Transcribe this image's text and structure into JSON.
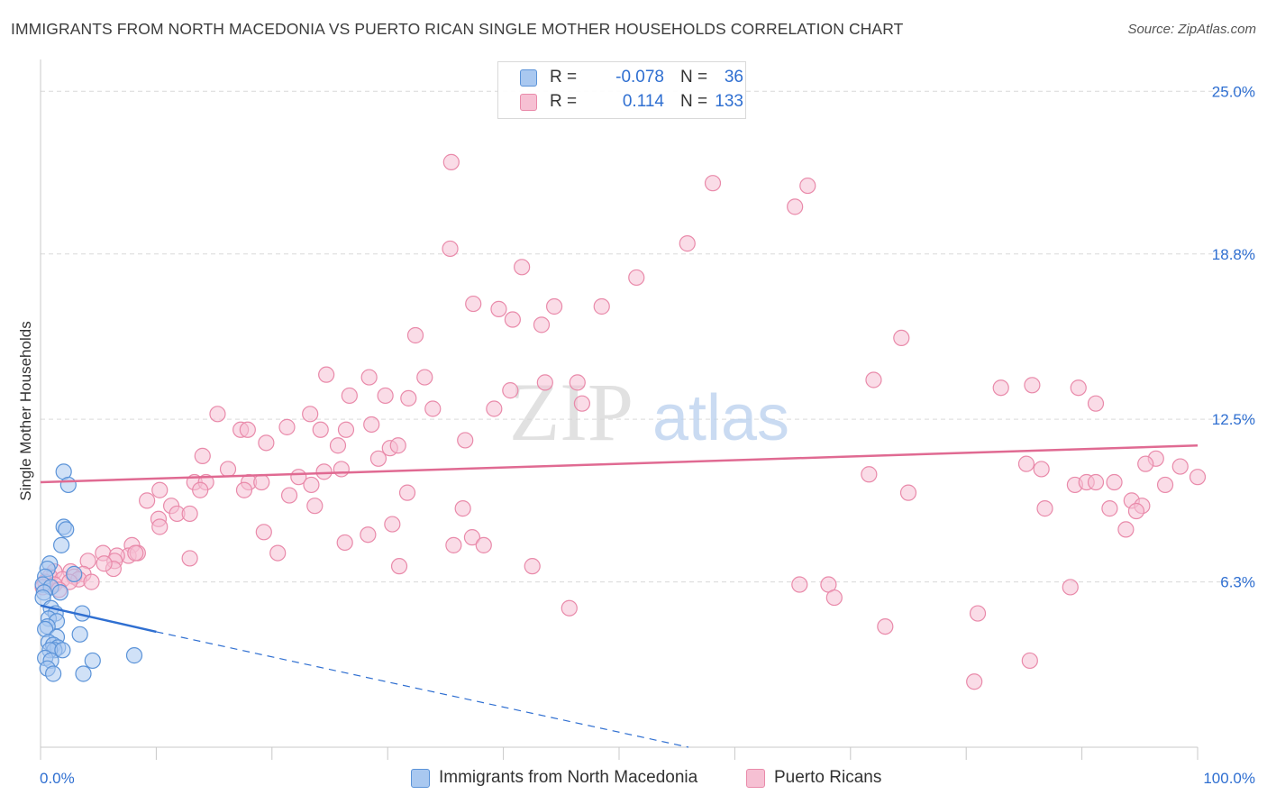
{
  "title": "IMMIGRANTS FROM NORTH MACEDONIA VS PUERTO RICAN SINGLE MOTHER HOUSEHOLDS CORRELATION CHART",
  "source": "Source: ZipAtlas.com",
  "watermark": {
    "zip": "ZIP",
    "atlas": "atlas"
  },
  "colors": {
    "blue_fill": "#a9c8f0",
    "blue_stroke": "#5b93d8",
    "blue_line": "#2f6fd1",
    "pink_fill": "#f6c0d3",
    "pink_stroke": "#e98aaa",
    "pink_line": "#e06a92",
    "grid": "#d9d9d9",
    "axis_text": "#2f6fd1"
  },
  "legend": {
    "rows": [
      {
        "r_label": "R =",
        "r_value": "-0.078",
        "n_label": "N =",
        "n_value": "36"
      },
      {
        "r_label": "R =",
        "r_value": "0.114",
        "n_label": "N =",
        "n_value": "133"
      }
    ]
  },
  "bottom_legend": {
    "series1": "Immigrants from North Macedonia",
    "series2": "Puerto Ricans"
  },
  "chart_data": {
    "type": "scatter",
    "title": "IMMIGRANTS FROM NORTH MACEDONIA VS PUERTO RICAN SINGLE MOTHER HOUSEHOLDS CORRELATION CHART",
    "xlabel": "",
    "ylabel": "Single Mother Households",
    "xlim": [
      0,
      100
    ],
    "ylim": [
      0,
      25.8
    ],
    "x_tick_labels": [
      "0.0%",
      "100.0%"
    ],
    "y_ticks": [
      6.3,
      12.5,
      18.8,
      25.0
    ],
    "y_tick_labels": [
      "6.3%",
      "12.5%",
      "18.8%",
      "25.0%"
    ],
    "grid": true,
    "legend_position": "top-center",
    "series": [
      {
        "name": "Immigrants from North Macedonia",
        "R": -0.078,
        "N": 36,
        "trend": {
          "x0": 0,
          "y0": 5.4,
          "x1": 10,
          "y1": 4.4,
          "dash_to": {
            "x": 56,
            "y": 0
          }
        },
        "points": [
          [
            2.0,
            10.5
          ],
          [
            2.4,
            10.0
          ],
          [
            2.0,
            8.4
          ],
          [
            2.2,
            8.3
          ],
          [
            1.8,
            7.7
          ],
          [
            0.8,
            7.0
          ],
          [
            0.6,
            6.8
          ],
          [
            2.9,
            6.6
          ],
          [
            0.4,
            6.5
          ],
          [
            0.2,
            6.2
          ],
          [
            0.9,
            6.1
          ],
          [
            0.3,
            5.9
          ],
          [
            1.7,
            5.9
          ],
          [
            0.2,
            5.7
          ],
          [
            0.9,
            5.3
          ],
          [
            1.3,
            5.1
          ],
          [
            3.6,
            5.1
          ],
          [
            0.7,
            4.9
          ],
          [
            1.4,
            4.8
          ],
          [
            0.6,
            4.6
          ],
          [
            0.4,
            4.5
          ],
          [
            3.4,
            4.3
          ],
          [
            1.4,
            4.2
          ],
          [
            0.7,
            4.0
          ],
          [
            1.1,
            3.9
          ],
          [
            1.5,
            3.8
          ],
          [
            1.2,
            3.7
          ],
          [
            0.8,
            3.7
          ],
          [
            1.9,
            3.7
          ],
          [
            8.1,
            3.5
          ],
          [
            0.4,
            3.4
          ],
          [
            0.9,
            3.3
          ],
          [
            4.5,
            3.3
          ],
          [
            0.6,
            3.0
          ],
          [
            1.1,
            2.8
          ],
          [
            3.7,
            2.8
          ]
        ]
      },
      {
        "name": "Puerto Ricans",
        "R": 0.114,
        "N": 133,
        "trend": {
          "x0": 0,
          "y0": 10.1,
          "x1": 100,
          "y1": 11.5
        },
        "points": [
          [
            35.5,
            22.3
          ],
          [
            58.1,
            21.5
          ],
          [
            66.3,
            21.4
          ],
          [
            65.2,
            20.6
          ],
          [
            35.4,
            19.0
          ],
          [
            55.9,
            19.2
          ],
          [
            41.6,
            18.3
          ],
          [
            51.5,
            17.9
          ],
          [
            37.4,
            16.9
          ],
          [
            39.6,
            16.7
          ],
          [
            44.4,
            16.8
          ],
          [
            48.5,
            16.8
          ],
          [
            40.8,
            16.3
          ],
          [
            43.3,
            16.1
          ],
          [
            32.4,
            15.7
          ],
          [
            74.4,
            15.6
          ],
          [
            24.7,
            14.2
          ],
          [
            28.4,
            14.1
          ],
          [
            33.2,
            14.1
          ],
          [
            43.6,
            13.9
          ],
          [
            46.4,
            13.9
          ],
          [
            72.0,
            14.0
          ],
          [
            83.0,
            13.7
          ],
          [
            85.7,
            13.8
          ],
          [
            89.7,
            13.7
          ],
          [
            40.6,
            13.6
          ],
          [
            26.7,
            13.4
          ],
          [
            29.8,
            13.4
          ],
          [
            31.8,
            13.3
          ],
          [
            46.8,
            13.1
          ],
          [
            91.2,
            13.1
          ],
          [
            33.9,
            12.9
          ],
          [
            39.2,
            12.9
          ],
          [
            15.3,
            12.7
          ],
          [
            23.3,
            12.7
          ],
          [
            17.3,
            12.1
          ],
          [
            17.9,
            12.1
          ],
          [
            21.3,
            12.2
          ],
          [
            24.2,
            12.1
          ],
          [
            26.4,
            12.1
          ],
          [
            28.6,
            12.3
          ],
          [
            36.7,
            11.7
          ],
          [
            19.5,
            11.6
          ],
          [
            25.7,
            11.5
          ],
          [
            30.2,
            11.4
          ],
          [
            14.0,
            11.1
          ],
          [
            30.9,
            11.5
          ],
          [
            29.2,
            11.0
          ],
          [
            16.2,
            10.6
          ],
          [
            26.0,
            10.6
          ],
          [
            22.3,
            10.3
          ],
          [
            24.5,
            10.5
          ],
          [
            13.3,
            10.1
          ],
          [
            14.3,
            10.1
          ],
          [
            18.0,
            10.1
          ],
          [
            19.1,
            10.1
          ],
          [
            23.4,
            10.0
          ],
          [
            71.6,
            10.4
          ],
          [
            86.5,
            10.6
          ],
          [
            85.2,
            10.8
          ],
          [
            96.4,
            11.0
          ],
          [
            95.5,
            10.8
          ],
          [
            98.5,
            10.7
          ],
          [
            100.0,
            10.3
          ],
          [
            89.4,
            10.0
          ],
          [
            90.4,
            10.1
          ],
          [
            91.2,
            10.1
          ],
          [
            92.8,
            10.1
          ],
          [
            97.2,
            10.0
          ],
          [
            10.3,
            9.8
          ],
          [
            13.8,
            9.8
          ],
          [
            17.6,
            9.8
          ],
          [
            21.5,
            9.6
          ],
          [
            31.7,
            9.7
          ],
          [
            75.0,
            9.7
          ],
          [
            9.2,
            9.4
          ],
          [
            11.3,
            9.2
          ],
          [
            36.5,
            9.1
          ],
          [
            23.7,
            9.2
          ],
          [
            86.8,
            9.1
          ],
          [
            92.4,
            9.1
          ],
          [
            94.3,
            9.4
          ],
          [
            95.2,
            9.2
          ],
          [
            94.7,
            9.0
          ],
          [
            10.2,
            8.7
          ],
          [
            11.8,
            8.9
          ],
          [
            12.9,
            8.9
          ],
          [
            10.3,
            8.4
          ],
          [
            30.4,
            8.5
          ],
          [
            93.8,
            8.3
          ],
          [
            19.3,
            8.2
          ],
          [
            28.3,
            8.1
          ],
          [
            37.3,
            8.0
          ],
          [
            26.3,
            7.8
          ],
          [
            7.9,
            7.7
          ],
          [
            35.7,
            7.7
          ],
          [
            38.3,
            7.7
          ],
          [
            20.5,
            7.4
          ],
          [
            5.4,
            7.4
          ],
          [
            7.6,
            7.3
          ],
          [
            8.4,
            7.4
          ],
          [
            6.6,
            7.3
          ],
          [
            8.2,
            7.4
          ],
          [
            6.4,
            7.1
          ],
          [
            12.9,
            7.2
          ],
          [
            6.3,
            6.8
          ],
          [
            5.5,
            7.0
          ],
          [
            4.1,
            7.1
          ],
          [
            1.2,
            6.7
          ],
          [
            2.6,
            6.7
          ],
          [
            0.8,
            6.5
          ],
          [
            3.7,
            6.6
          ],
          [
            1.9,
            6.4
          ],
          [
            2.9,
            6.5
          ],
          [
            3.3,
            6.4
          ],
          [
            0.4,
            6.3
          ],
          [
            1.2,
            6.2
          ],
          [
            2.5,
            6.3
          ],
          [
            4.4,
            6.3
          ],
          [
            0.2,
            6.1
          ],
          [
            1.6,
            6.0
          ],
          [
            89.0,
            6.1
          ],
          [
            31.0,
            6.9
          ],
          [
            42.5,
            6.9
          ],
          [
            65.6,
            6.2
          ],
          [
            68.1,
            6.2
          ],
          [
            68.6,
            5.7
          ],
          [
            45.7,
            5.3
          ],
          [
            81.0,
            5.1
          ],
          [
            73.0,
            4.6
          ],
          [
            85.5,
            3.3
          ],
          [
            80.7,
            2.5
          ]
        ]
      }
    ]
  }
}
